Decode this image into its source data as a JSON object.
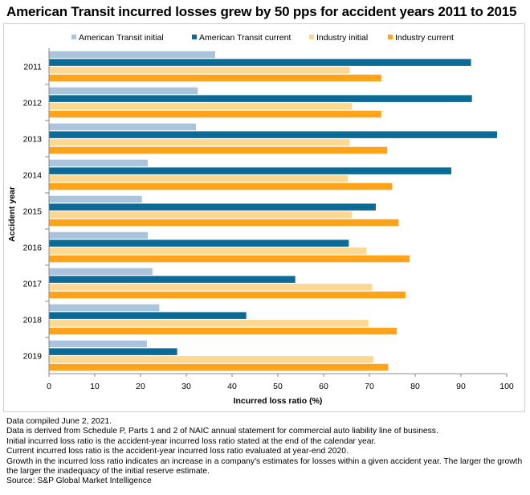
{
  "title": "American Transit incurred losses grew by 50 pps for accident years 2011 to 2015",
  "chart_data": {
    "type": "bar",
    "orientation": "horizontal",
    "categories": [
      "2011",
      "2012",
      "2013",
      "2014",
      "2015",
      "2016",
      "2017",
      "2018",
      "2019"
    ],
    "series": [
      {
        "name": "American Transit initial",
        "color": "#a9c4db",
        "values": [
          36.3,
          32.5,
          32.1,
          21.6,
          20.3,
          21.6,
          22.6,
          24.1,
          21.4
        ]
      },
      {
        "name": "American Transit current",
        "color": "#0b6a96",
        "values": [
          92.2,
          92.4,
          97.9,
          87.9,
          71.4,
          65.5,
          53.8,
          43.1,
          28.0
        ]
      },
      {
        "name": "Industry initial",
        "color": "#fdd892",
        "values": [
          65.7,
          66.2,
          65.7,
          65.3,
          66.2,
          69.4,
          70.6,
          69.8,
          70.9
        ]
      },
      {
        "name": "Industry current",
        "color": "#ffa31a",
        "values": [
          72.6,
          72.6,
          73.9,
          75.0,
          76.4,
          78.8,
          77.9,
          76.0,
          74.1
        ]
      }
    ],
    "xlabel": "Incurred loss ratio (%)",
    "ylabel": "Accident year",
    "xlim": [
      0,
      100
    ],
    "xticks": [
      "0",
      "10",
      "20",
      "30",
      "40",
      "50",
      "60",
      "70",
      "80",
      "90",
      "100"
    ],
    "grid": false,
    "legend_position": "top"
  },
  "footnotes": [
    "Data compiled June 2, 2021.",
    "Data is derived from Schedule P, Parts 1 and 2 of NAIC annual statement for commercial auto liability line of business.",
    "Initial incurred loss ratio is the accident-year incurred loss ratio stated at the end of the calendar year.",
    "Current incurred loss ratio is the accident-year incurred loss ratio evaluated at year-end 2020.",
    "Growth in the incurred loss ratio indicates an increase in a company's estimates for losses within a given accident year. The larger the growth the larger the inadequacy of the initial reserve estimate.",
    "Source: S&P Global Market Intelligence"
  ]
}
